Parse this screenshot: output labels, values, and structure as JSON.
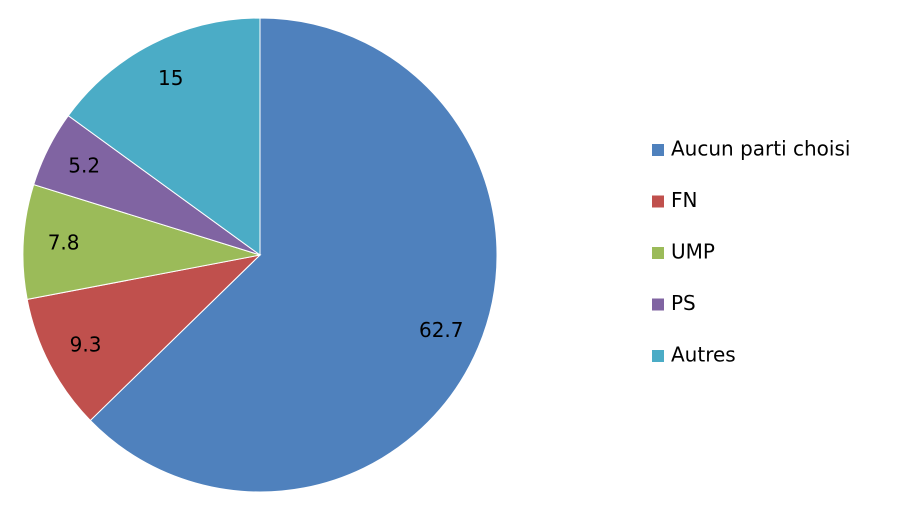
{
  "chart_data": {
    "type": "pie",
    "categories": [
      "Aucun parti choisi",
      "FN",
      "UMP",
      "PS",
      "Autres"
    ],
    "values": [
      62.7,
      9.3,
      7.8,
      5.2,
      15
    ],
    "colors": [
      "#4f81bd",
      "#c0504d",
      "#9bbb59",
      "#8064a2",
      "#4bacc6"
    ],
    "legend": "right"
  }
}
